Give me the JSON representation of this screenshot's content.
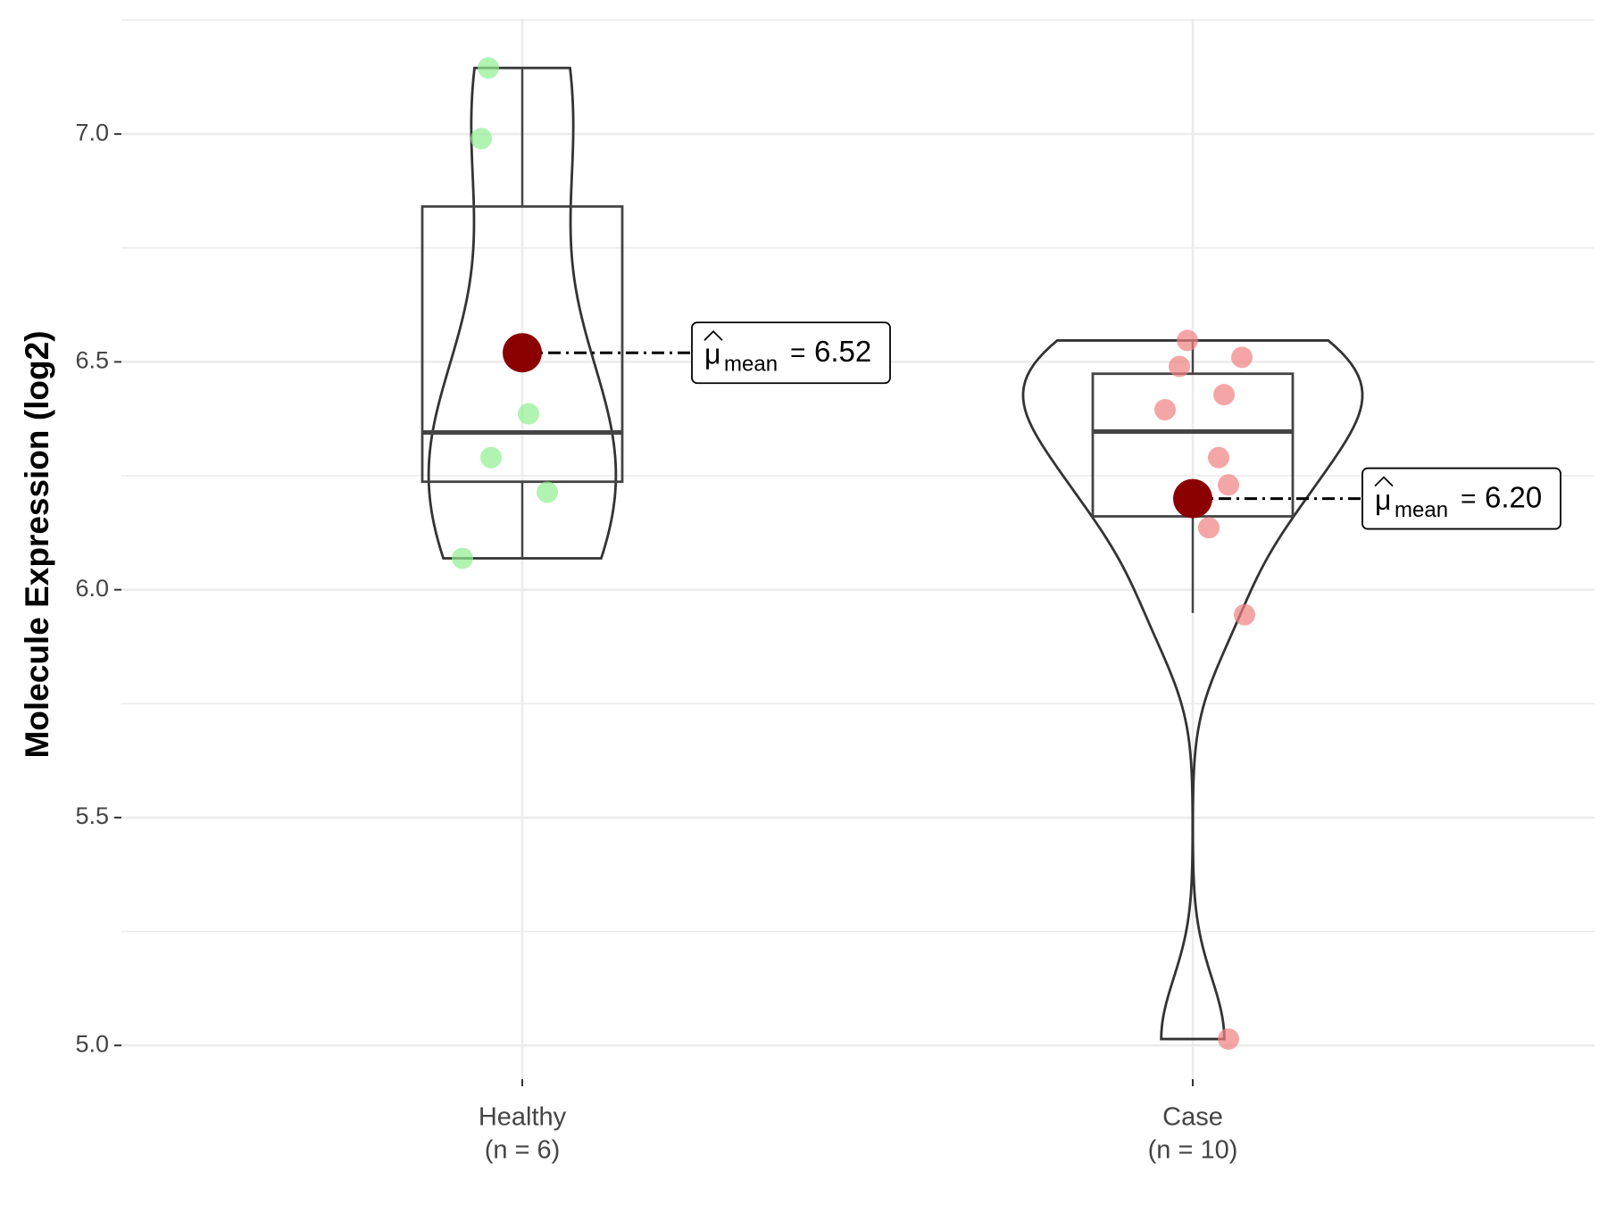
{
  "chart_data": {
    "type": "violin",
    "y_label": "Molecule Expression (log2)",
    "ylim": [
      4.926,
      7.253
    ],
    "yticks": [
      {
        "value": 5.0,
        "label": "5.0"
      },
      {
        "value": 5.5,
        "label": "5.5"
      },
      {
        "value": 6.0,
        "label": "6.0"
      },
      {
        "value": 6.5,
        "label": "6.5"
      },
      {
        "value": 7.0,
        "label": "7.0"
      }
    ],
    "grid": true,
    "mean_symbol": "μ",
    "mean_subscript": "mean",
    "mean_equals": "=",
    "mean_color": "#8b0000",
    "series": [
      {
        "name": "Healthy",
        "n_label": "(n = 6)",
        "color": "#90ee90",
        "values": [
          7.145,
          6.99,
          6.386,
          6.29,
          6.214,
          6.069
        ],
        "box": {
          "whisker_low": 6.069,
          "q1": 6.237,
          "median": 6.345,
          "q3": 6.841,
          "whisker_high": 7.145
        },
        "mean": 6.52,
        "mean_label": "6.52"
      },
      {
        "name": "Case",
        "n_label": "(n = 10)",
        "color": "#f08080",
        "values": [
          6.547,
          6.49,
          6.51,
          6.428,
          6.395,
          6.29,
          6.23,
          6.136,
          5.945,
          5.014
        ],
        "box": {
          "whisker_low": 5.949,
          "q1": 6.161,
          "median": 6.347,
          "q3": 6.474,
          "whisker_high": 6.547
        },
        "mean": 6.2,
        "mean_label": "6.20"
      }
    ]
  }
}
